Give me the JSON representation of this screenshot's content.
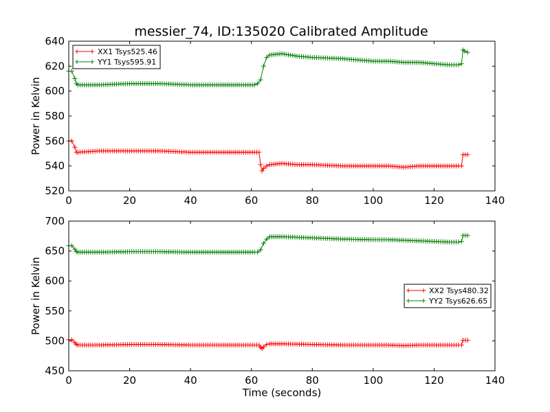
{
  "figure": {
    "title": "messier_74, ID:135020 Calibrated Amplitude",
    "xlabel": "Time (seconds)"
  },
  "colors": {
    "red": "#ff0000",
    "green": "#008000"
  },
  "chart_data": [
    {
      "type": "line",
      "title": "messier_74, ID:135020 Calibrated Amplitude",
      "xlabel": "",
      "ylabel": "Power in Kelvin",
      "xlim": [
        0,
        140
      ],
      "ylim": [
        520,
        640
      ],
      "xticks": [
        "0",
        "20",
        "40",
        "60",
        "80",
        "100",
        "120",
        "140"
      ],
      "yticks": [
        "520",
        "540",
        "560",
        "580",
        "600",
        "620",
        "640"
      ],
      "legend_position": "top-left",
      "marker": "+",
      "grid": false,
      "series": [
        {
          "name": "XX1 Tsys525.46",
          "color": "#ff0000",
          "points": [
            [
              0,
              560
            ],
            [
              1,
              560
            ],
            [
              2,
              555
            ],
            [
              2.5,
              551
            ],
            [
              3,
              551
            ],
            [
              10,
              552
            ],
            [
              20,
              552
            ],
            [
              30,
              552
            ],
            [
              40,
              551
            ],
            [
              50,
              551
            ],
            [
              56,
              551
            ],
            [
              61,
              551
            ],
            [
              62.5,
              551
            ],
            [
              63,
              541
            ],
            [
              63.5,
              536
            ],
            [
              64,
              538
            ],
            [
              65,
              540
            ],
            [
              66,
              541
            ],
            [
              70,
              542
            ],
            [
              75,
              541
            ],
            [
              80,
              541
            ],
            [
              90,
              540
            ],
            [
              100,
              540
            ],
            [
              105,
              540
            ],
            [
              110,
              539
            ],
            [
              115,
              540
            ],
            [
              120,
              540
            ],
            [
              125,
              540
            ],
            [
              128,
              540
            ],
            [
              129,
              540
            ],
            [
              129.5,
              549
            ],
            [
              131,
              549
            ]
          ]
        },
        {
          "name": "YY1 Tsys595.91",
          "color": "#008000",
          "points": [
            [
              0,
              616
            ],
            [
              1,
              616
            ],
            [
              2,
              610
            ],
            [
              2.5,
              606
            ],
            [
              3,
              605
            ],
            [
              10,
              605
            ],
            [
              20,
              606
            ],
            [
              30,
              606
            ],
            [
              40,
              605
            ],
            [
              50,
              605
            ],
            [
              56,
              605
            ],
            [
              61,
              605
            ],
            [
              62,
              606
            ],
            [
              63,
              609
            ],
            [
              64,
              620
            ],
            [
              65,
              627
            ],
            [
              66,
              629
            ],
            [
              70,
              630
            ],
            [
              75,
              628
            ],
            [
              80,
              627
            ],
            [
              90,
              626
            ],
            [
              100,
              624
            ],
            [
              105,
              624
            ],
            [
              110,
              623
            ],
            [
              115,
              623
            ],
            [
              120,
              622
            ],
            [
              125,
              621
            ],
            [
              128,
              621
            ],
            [
              129,
              622
            ],
            [
              129.5,
              633
            ],
            [
              130,
              632
            ],
            [
              131,
              631
            ]
          ]
        }
      ]
    },
    {
      "type": "line",
      "title": "",
      "xlabel": "Time (seconds)",
      "ylabel": "Power in Kelvin",
      "xlim": [
        0,
        140
      ],
      "ylim": [
        450,
        700
      ],
      "xticks": [
        "0",
        "20",
        "40",
        "60",
        "80",
        "100",
        "120",
        "140"
      ],
      "yticks": [
        "450",
        "500",
        "550",
        "600",
        "650",
        "700"
      ],
      "legend_position": "center-right",
      "marker": "+",
      "grid": false,
      "series": [
        {
          "name": "XX2 Tsys480.32",
          "color": "#ff0000",
          "points": [
            [
              0,
              502
            ],
            [
              1,
              502
            ],
            [
              2,
              497
            ],
            [
              2.5,
              494
            ],
            [
              3,
              493
            ],
            [
              10,
              493
            ],
            [
              20,
              494
            ],
            [
              30,
              494
            ],
            [
              40,
              493
            ],
            [
              50,
              493
            ],
            [
              56,
              493
            ],
            [
              61,
              493
            ],
            [
              62.5,
              493
            ],
            [
              63,
              489
            ],
            [
              63.5,
              487
            ],
            [
              64,
              490
            ],
            [
              65,
              494
            ],
            [
              66,
              495
            ],
            [
              70,
              495
            ],
            [
              80,
              494
            ],
            [
              90,
              493
            ],
            [
              100,
              493
            ],
            [
              105,
              493
            ],
            [
              110,
              492
            ],
            [
              115,
              493
            ],
            [
              120,
              493
            ],
            [
              125,
              493
            ],
            [
              128,
              493
            ],
            [
              129,
              493
            ],
            [
              129.5,
              501
            ],
            [
              131,
              501
            ]
          ]
        },
        {
          "name": "YY2 Tsys626.65",
          "color": "#008000",
          "points": [
            [
              0,
              659
            ],
            [
              1,
              659
            ],
            [
              2,
              653
            ],
            [
              2.5,
              649
            ],
            [
              3,
              648
            ],
            [
              10,
              648
            ],
            [
              20,
              649
            ],
            [
              30,
              649
            ],
            [
              40,
              648
            ],
            [
              50,
              648
            ],
            [
              56,
              648
            ],
            [
              61,
              648
            ],
            [
              62,
              648
            ],
            [
              63,
              652
            ],
            [
              64,
              663
            ],
            [
              65,
              670
            ],
            [
              66,
              674
            ],
            [
              70,
              674
            ],
            [
              75,
              673
            ],
            [
              80,
              672
            ],
            [
              90,
              670
            ],
            [
              100,
              669
            ],
            [
              105,
              669
            ],
            [
              110,
              668
            ],
            [
              115,
              667
            ],
            [
              120,
              666
            ],
            [
              125,
              665
            ],
            [
              128,
              665
            ],
            [
              129,
              666
            ],
            [
              129.5,
              676
            ],
            [
              131,
              676
            ]
          ]
        }
      ]
    }
  ]
}
